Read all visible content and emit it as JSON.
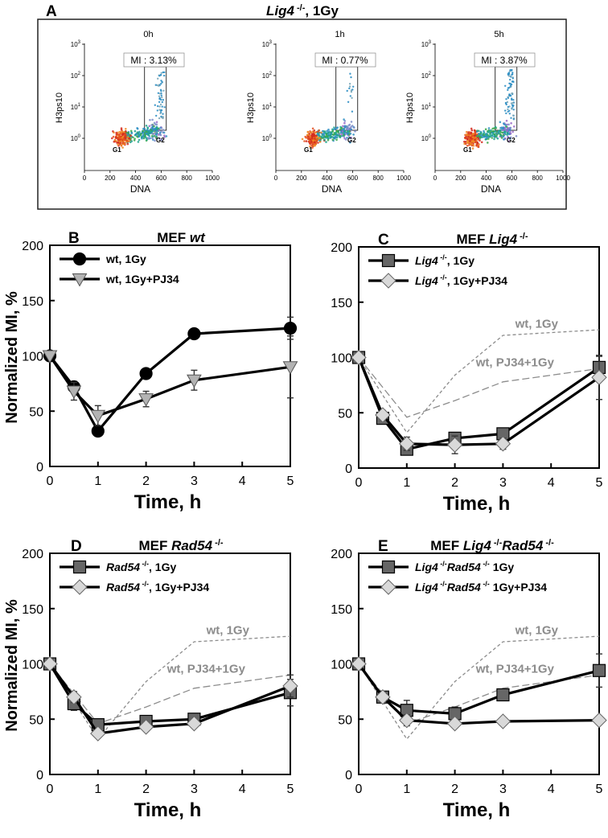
{
  "colors": {
    "ink": "#000000",
    "square_fill": "#666666",
    "diamond_fill": "#d9d9d9",
    "triangle_fill": "#b3b3b3",
    "ref_line": "#8c8c8c",
    "panel_border": "#222222"
  },
  "panel_a": {
    "label": "A",
    "title_gene": "Lig4",
    "title_sup": " -/-",
    "title_rest": ", 1Gy",
    "ylabel": "H3ps10",
    "xlabel": "DNA",
    "yticks": [
      {
        "base": "10",
        "exp": "0"
      },
      {
        "base": "10",
        "exp": "1"
      },
      {
        "base": "10",
        "exp": "2"
      },
      {
        "base": "10",
        "exp": "3"
      }
    ],
    "xticks": [
      "0",
      "200",
      "400",
      "600",
      "800",
      "1000"
    ],
    "g1_label": "G1",
    "g2_label": "G2",
    "plots": [
      {
        "title": "0h",
        "mi": "MI : 3.13%",
        "mi_value": 3.13
      },
      {
        "title": "1h",
        "mi": "MI : 0.77%",
        "mi_value": 0.77
      },
      {
        "title": "5h",
        "mi": "MI : 3.87%",
        "mi_value": 3.87
      }
    ]
  },
  "chart_data": [
    {
      "type": "line",
      "panel": "B",
      "title": "MEF wt",
      "title_parts": [
        {
          "t": "MEF ",
          "i": false
        },
        {
          "t": "wt",
          "i": true
        }
      ],
      "xlabel": "Time, h",
      "ylabel": "Normalized MI, %",
      "xlim": [
        0,
        5
      ],
      "ylim": [
        0,
        200
      ],
      "xticks": [
        0,
        1,
        2,
        3,
        4,
        5
      ],
      "yticks": [
        0,
        50,
        100,
        150,
        200
      ],
      "legend_position": "top-left",
      "series": [
        {
          "name": "wt, 1Gy",
          "legend": [
            {
              "t": "wt, 1Gy",
              "i": false
            }
          ],
          "marker": "circle",
          "color": "#000000",
          "fill": "#000000",
          "x": [
            0,
            0.5,
            1,
            2,
            3,
            5
          ],
          "y": [
            100,
            72,
            32,
            84,
            120,
            125
          ],
          "err": [
            0,
            5,
            3,
            3,
            3,
            10
          ]
        },
        {
          "name": "wt, 1Gy+PJ34",
          "legend": [
            {
              "t": "wt, 1Gy+PJ34",
              "i": false
            }
          ],
          "marker": "triangle",
          "color": "#444444",
          "fill": "#b3b3b3",
          "x": [
            0,
            0.5,
            1,
            2,
            3,
            5
          ],
          "y": [
            100,
            68,
            46,
            61,
            78,
            90
          ],
          "err": [
            0,
            8,
            9,
            7,
            9,
            28
          ]
        }
      ],
      "reference_lines": []
    },
    {
      "type": "line",
      "panel": "C",
      "title": "MEF Lig4 -/-",
      "title_parts": [
        {
          "t": "MEF ",
          "i": false
        },
        {
          "t": "Lig4",
          "i": true
        },
        {
          "t": " -/-",
          "i": false,
          "sup": true
        }
      ],
      "xlabel": "Time, h",
      "ylabel": "",
      "xlim": [
        0,
        5
      ],
      "ylim": [
        0,
        200
      ],
      "xticks": [
        0,
        1,
        2,
        3,
        4,
        5
      ],
      "yticks": [
        0,
        50,
        100,
        150,
        200
      ],
      "legend_position": "top-left",
      "series": [
        {
          "name": "Lig4 -/-, 1Gy",
          "legend": [
            {
              "t": "Lig4",
              "i": true
            },
            {
              "t": " -/-",
              "sup": true
            },
            {
              "t": ", 1Gy"
            }
          ],
          "marker": "square",
          "color": "#000000",
          "fill": "#666666",
          "x": [
            0,
            0.5,
            1,
            2,
            3,
            5
          ],
          "y": [
            100,
            45,
            17,
            27,
            31,
            91
          ],
          "err": [
            0,
            4,
            4,
            5,
            4,
            10
          ]
        },
        {
          "name": "Lig4 -/-, 1Gy+PJ34",
          "legend": [
            {
              "t": "Lig4",
              "i": true
            },
            {
              "t": " -/-",
              "sup": true
            },
            {
              "t": ", 1Gy+PJ34"
            }
          ],
          "marker": "diamond",
          "color": "#000000",
          "fill": "#d9d9d9",
          "x": [
            0,
            0.5,
            1,
            2,
            3,
            5
          ],
          "y": [
            100,
            48,
            22,
            21,
            22,
            82
          ],
          "err": [
            0,
            4,
            6,
            8,
            5,
            20
          ]
        }
      ],
      "reference_lines": [
        {
          "label": "wt, 1Gy",
          "style": "short-dash",
          "x": [
            0,
            1,
            2,
            3,
            5
          ],
          "y": [
            100,
            32,
            84,
            120,
            125
          ]
        },
        {
          "label": "wt, PJ34+1Gy",
          "style": "long-dash",
          "x": [
            0,
            1,
            2,
            3,
            5
          ],
          "y": [
            100,
            46,
            61,
            78,
            90
          ]
        }
      ]
    },
    {
      "type": "line",
      "panel": "D",
      "title": "MEF Rad54 -/-",
      "title_parts": [
        {
          "t": "MEF ",
          "i": false
        },
        {
          "t": "Rad54",
          "i": true
        },
        {
          "t": " -/-",
          "i": false,
          "sup": true
        }
      ],
      "xlabel": "Time, h",
      "ylabel": "Normalized MI, %",
      "xlim": [
        0,
        5
      ],
      "ylim": [
        0,
        200
      ],
      "xticks": [
        0,
        1,
        2,
        3,
        4,
        5
      ],
      "yticks": [
        0,
        50,
        100,
        150,
        200
      ],
      "legend_position": "top-left",
      "series": [
        {
          "name": "Rad54 -/-, 1Gy",
          "legend": [
            {
              "t": "Rad54",
              "i": true
            },
            {
              "t": " -/-",
              "sup": true
            },
            {
              "t": ", 1Gy"
            }
          ],
          "marker": "square",
          "color": "#000000",
          "fill": "#666666",
          "x": [
            0,
            0.5,
            1,
            2,
            3,
            5
          ],
          "y": [
            100,
            64,
            45,
            48,
            50,
            74
          ],
          "err": [
            0,
            6,
            4,
            3,
            3,
            12
          ]
        },
        {
          "name": "Rad54 -/-, 1Gy+PJ34",
          "legend": [
            {
              "t": "Rad54",
              "i": true
            },
            {
              "t": " -/-",
              "sup": true
            },
            {
              "t": ", 1Gy+PJ34"
            }
          ],
          "marker": "diamond",
          "color": "#000000",
          "fill": "#d9d9d9",
          "x": [
            0,
            0.5,
            1,
            2,
            3,
            5
          ],
          "y": [
            100,
            70,
            37,
            43,
            46,
            80
          ],
          "err": [
            0,
            5,
            3,
            3,
            3,
            10
          ]
        }
      ],
      "reference_lines": [
        {
          "label": "wt, 1Gy",
          "style": "short-dash",
          "x": [
            0,
            1,
            2,
            3,
            5
          ],
          "y": [
            100,
            32,
            84,
            120,
            125
          ]
        },
        {
          "label": "wt, PJ34+1Gy",
          "style": "long-dash",
          "x": [
            0,
            1,
            2,
            3,
            5
          ],
          "y": [
            100,
            46,
            61,
            78,
            90
          ]
        }
      ]
    },
    {
      "type": "line",
      "panel": "E",
      "title": "MEF Lig4 -/- Rad54 -/-",
      "title_parts": [
        {
          "t": "MEF ",
          "i": false
        },
        {
          "t": "Lig4",
          "i": true
        },
        {
          "t": " -/-",
          "sup": true
        },
        {
          "t": "Rad54",
          "i": true
        },
        {
          "t": " -/-",
          "sup": true
        }
      ],
      "xlabel": "Time, h",
      "ylabel": "",
      "xlim": [
        0,
        5
      ],
      "ylim": [
        0,
        200
      ],
      "xticks": [
        0,
        1,
        2,
        3,
        4,
        5
      ],
      "yticks": [
        0,
        50,
        100,
        150,
        200
      ],
      "legend_position": "top-left",
      "series": [
        {
          "name": "Lig4 -/- Rad54 -/- 1Gy",
          "legend": [
            {
              "t": "Lig4",
              "i": true
            },
            {
              "t": " -/-",
              "sup": true
            },
            {
              "t": "Rad54",
              "i": true
            },
            {
              "t": " -/-",
              "sup": true
            },
            {
              "t": " 1Gy"
            }
          ],
          "marker": "square",
          "color": "#000000",
          "fill": "#666666",
          "x": [
            0,
            0.5,
            1,
            2,
            3,
            5
          ],
          "y": [
            100,
            70,
            58,
            55,
            72,
            94
          ],
          "err": [
            0,
            3,
            9,
            6,
            5,
            15
          ]
        },
        {
          "name": "Lig4 -/- Rad54 -/- 1Gy+PJ34",
          "legend": [
            {
              "t": "Lig4",
              "i": true
            },
            {
              "t": " -/-",
              "sup": true
            },
            {
              "t": "Rad54",
              "i": true
            },
            {
              "t": " -/-",
              "sup": true
            },
            {
              "t": " 1Gy+PJ34"
            }
          ],
          "marker": "diamond",
          "color": "#000000",
          "fill": "#d9d9d9",
          "x": [
            0,
            0.5,
            1,
            2,
            3,
            5
          ],
          "y": [
            100,
            70,
            49,
            46,
            48,
            49
          ],
          "err": [
            0,
            3,
            5,
            3,
            3,
            3
          ]
        }
      ],
      "reference_lines": [
        {
          "label": "wt, 1Gy",
          "style": "short-dash",
          "x": [
            0,
            1,
            2,
            3,
            5
          ],
          "y": [
            100,
            32,
            84,
            120,
            125
          ]
        },
        {
          "label": "wt, PJ34+1Gy",
          "style": "long-dash",
          "x": [
            0,
            1,
            2,
            3,
            5
          ],
          "y": [
            100,
            46,
            61,
            78,
            90
          ]
        }
      ]
    }
  ]
}
